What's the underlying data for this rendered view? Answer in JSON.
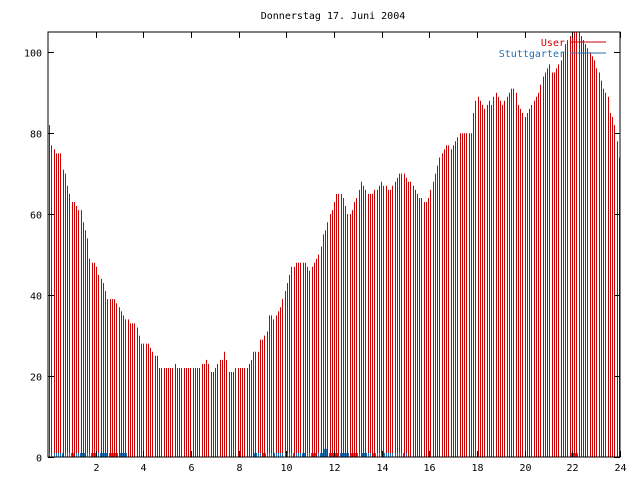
{
  "chart_data": {
    "type": "bar",
    "title": "Donnerstag 17. Juni 2004",
    "xlabel": "",
    "ylabel": "",
    "xlim": [
      0,
      24
    ],
    "ylim": [
      0,
      105
    ],
    "x_ticks": [
      2,
      4,
      6,
      8,
      10,
      12,
      14,
      16,
      18,
      20,
      22,
      24
    ],
    "y_ticks": [
      0,
      20,
      40,
      60,
      80,
      100
    ],
    "grid": false,
    "legend_position": "top-right",
    "colors": {
      "User": "#cc0000",
      "Stuttgarter": "#1f6fb2"
    },
    "series": [
      {
        "name": "User",
        "values": [
          82,
          77,
          76,
          75,
          75,
          75,
          71,
          70,
          67,
          65,
          63,
          63,
          62,
          61,
          61,
          58,
          56,
          54,
          49,
          48,
          48,
          47,
          45,
          44,
          43,
          41,
          39,
          39,
          39,
          39,
          38,
          37,
          36,
          35,
          34,
          34,
          33,
          33,
          33,
          32,
          30,
          28,
          28,
          28,
          28,
          27,
          26,
          25,
          25,
          22,
          22,
          22,
          22,
          22,
          22,
          22,
          23,
          22,
          22,
          22,
          22,
          22,
          22,
          22,
          22,
          22,
          22,
          22,
          23,
          23,
          24,
          23,
          21,
          21,
          22,
          23,
          24,
          24,
          26,
          24,
          21,
          21,
          21,
          22,
          22,
          22,
          22,
          22,
          22,
          23,
          24,
          26,
          26,
          26,
          29,
          29,
          30,
          31,
          35,
          35,
          34,
          35,
          36,
          37,
          39,
          41,
          43,
          45,
          47,
          47,
          48,
          48,
          48,
          48,
          48,
          47,
          46,
          47,
          48,
          49,
          50,
          52,
          55,
          56,
          58,
          60,
          61,
          63,
          65,
          65,
          65,
          64,
          62,
          60,
          60,
          61,
          63,
          64,
          66,
          68,
          67,
          66,
          65,
          65,
          65,
          66,
          66,
          67,
          68,
          67,
          67,
          66,
          66,
          67,
          68,
          69,
          70,
          70,
          70,
          69,
          68,
          68,
          67,
          66,
          65,
          64,
          64,
          63,
          63,
          64,
          66,
          68,
          70,
          72,
          74,
          75,
          76,
          77,
          77,
          76,
          77,
          78,
          79,
          80,
          80,
          80,
          80,
          80,
          80,
          85,
          88,
          89,
          88,
          87,
          86,
          87,
          88,
          87,
          89,
          90,
          89,
          88,
          87,
          88,
          89,
          90,
          91,
          91,
          90,
          87,
          86,
          85,
          84,
          85,
          86,
          87,
          88,
          89,
          90,
          92,
          94,
          95,
          96,
          97,
          95,
          95,
          96,
          97,
          98,
          100,
          102,
          103,
          104,
          105,
          105,
          105,
          105,
          104,
          103,
          102,
          101,
          100,
          99,
          98,
          96,
          95,
          93,
          91,
          90,
          89,
          85,
          84,
          82,
          78,
          74
        ],
        "values_note": ""
      },
      {
        "name": "Stuttgarter",
        "values": [
          1,
          1,
          1,
          1,
          1,
          1,
          1,
          1,
          1,
          1,
          1,
          1,
          1,
          1,
          1,
          1,
          1,
          1,
          1,
          1,
          1,
          1,
          1,
          1,
          1,
          1,
          1,
          1,
          1,
          1,
          1,
          1,
          1,
          1,
          1,
          1,
          0,
          0,
          0,
          0,
          0,
          0,
          0,
          0,
          0,
          0,
          0,
          0,
          0,
          0,
          0,
          0,
          0,
          0,
          0,
          0,
          0,
          0,
          0,
          0,
          0,
          0,
          0,
          0,
          0,
          0,
          0,
          0,
          0,
          0,
          0,
          0,
          0,
          0,
          0,
          0,
          0,
          0,
          0,
          0,
          0,
          0,
          0,
          0,
          0,
          0,
          0,
          0,
          0,
          0,
          0,
          0,
          0,
          1,
          1,
          1,
          1,
          1,
          1,
          1,
          1,
          1,
          1,
          1,
          1,
          1,
          1,
          1,
          1,
          1,
          1,
          1,
          1,
          1,
          1,
          1,
          1,
          1,
          1,
          1,
          1,
          1,
          1,
          1,
          1,
          2,
          2,
          1,
          1,
          1,
          1,
          1,
          1,
          1,
          1,
          1,
          1,
          1,
          1,
          1,
          1,
          1,
          1,
          1,
          1,
          1,
          1,
          1,
          1,
          1,
          1,
          1,
          1,
          1,
          1,
          1,
          1,
          1,
          1,
          1,
          1,
          1,
          1,
          0,
          0,
          0,
          0,
          0,
          0,
          0,
          0,
          0,
          0,
          0,
          0,
          0,
          0,
          0,
          0,
          0,
          0,
          0,
          0,
          0,
          0,
          0,
          0,
          0,
          0,
          0,
          0,
          0,
          0,
          0,
          0,
          0,
          0,
          0,
          0,
          0,
          0,
          0,
          0,
          0,
          0,
          0,
          0,
          0,
          0,
          0,
          0,
          0,
          0,
          0,
          0,
          0,
          0,
          0,
          0,
          0,
          0,
          0,
          0,
          0,
          0,
          0,
          0,
          0,
          0,
          0,
          0,
          0,
          0,
          0,
          0,
          0,
          0,
          1,
          1,
          1,
          1,
          0,
          0,
          0,
          0,
          0,
          0,
          0,
          0,
          0,
          0,
          0,
          0,
          0,
          0,
          0,
          0,
          0,
          0,
          0
        ]
      }
    ]
  }
}
